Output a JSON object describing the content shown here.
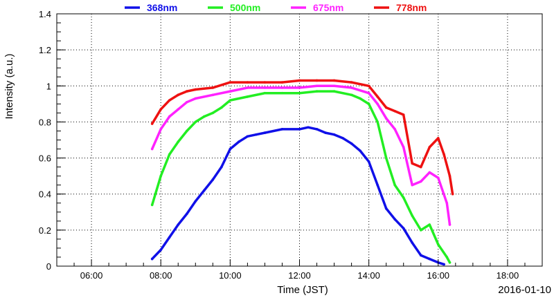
{
  "chart_data": {
    "type": "line",
    "xlabel": "Time (JST)",
    "ylabel": "Intensity (a.u.)",
    "date_label": "2016-01-10",
    "xlim": [
      "05:00",
      "19:00"
    ],
    "ylim": [
      0,
      1.4
    ],
    "x_ticks": [
      "06:00",
      "08:00",
      "10:00",
      "12:00",
      "14:00",
      "16:00",
      "18:00"
    ],
    "y_ticks": [
      "0",
      "0.2",
      "0.4",
      "0.6",
      "0.8",
      "1",
      "1.2",
      "1.4"
    ],
    "grid": true,
    "legend_position": "top",
    "series": [
      {
        "name": "368nm",
        "color": "#1010e8",
        "points": [
          [
            "07:45",
            0.04
          ],
          [
            "08:00",
            0.09
          ],
          [
            "08:15",
            0.16
          ],
          [
            "08:30",
            0.23
          ],
          [
            "08:45",
            0.29
          ],
          [
            "09:00",
            0.36
          ],
          [
            "09:15",
            0.42
          ],
          [
            "09:30",
            0.48
          ],
          [
            "09:45",
            0.55
          ],
          [
            "10:00",
            0.65
          ],
          [
            "10:15",
            0.69
          ],
          [
            "10:30",
            0.72
          ],
          [
            "10:45",
            0.73
          ],
          [
            "11:00",
            0.74
          ],
          [
            "11:30",
            0.76
          ],
          [
            "12:00",
            0.76
          ],
          [
            "12:15",
            0.77
          ],
          [
            "12:30",
            0.76
          ],
          [
            "12:45",
            0.74
          ],
          [
            "13:00",
            0.73
          ],
          [
            "13:15",
            0.71
          ],
          [
            "13:30",
            0.68
          ],
          [
            "13:45",
            0.64
          ],
          [
            "14:00",
            0.58
          ],
          [
            "14:15",
            0.45
          ],
          [
            "14:30",
            0.32
          ],
          [
            "14:45",
            0.26
          ],
          [
            "15:00",
            0.21
          ],
          [
            "15:15",
            0.13
          ],
          [
            "15:30",
            0.06
          ],
          [
            "15:45",
            0.04
          ],
          [
            "16:00",
            0.02
          ],
          [
            "16:10",
            0.01
          ]
        ]
      },
      {
        "name": "500nm",
        "color": "#22ee22",
        "points": [
          [
            "07:45",
            0.34
          ],
          [
            "08:00",
            0.5
          ],
          [
            "08:15",
            0.62
          ],
          [
            "08:30",
            0.69
          ],
          [
            "08:45",
            0.75
          ],
          [
            "09:00",
            0.8
          ],
          [
            "09:15",
            0.83
          ],
          [
            "09:30",
            0.85
          ],
          [
            "09:45",
            0.88
          ],
          [
            "10:00",
            0.92
          ],
          [
            "10:30",
            0.94
          ],
          [
            "11:00",
            0.96
          ],
          [
            "11:30",
            0.96
          ],
          [
            "12:00",
            0.96
          ],
          [
            "12:30",
            0.97
          ],
          [
            "13:00",
            0.97
          ],
          [
            "13:30",
            0.95
          ],
          [
            "13:45",
            0.93
          ],
          [
            "14:00",
            0.9
          ],
          [
            "14:15",
            0.8
          ],
          [
            "14:30",
            0.6
          ],
          [
            "14:45",
            0.45
          ],
          [
            "15:00",
            0.38
          ],
          [
            "15:15",
            0.28
          ],
          [
            "15:30",
            0.2
          ],
          [
            "15:45",
            0.23
          ],
          [
            "16:00",
            0.12
          ],
          [
            "16:15",
            0.05
          ],
          [
            "16:20",
            0.02
          ]
        ]
      },
      {
        "name": "675nm",
        "color": "#ff22ff",
        "points": [
          [
            "07:45",
            0.65
          ],
          [
            "08:00",
            0.76
          ],
          [
            "08:15",
            0.83
          ],
          [
            "08:30",
            0.87
          ],
          [
            "08:45",
            0.91
          ],
          [
            "09:00",
            0.93
          ],
          [
            "09:30",
            0.95
          ],
          [
            "10:00",
            0.97
          ],
          [
            "10:30",
            0.99
          ],
          [
            "11:00",
            0.99
          ],
          [
            "11:30",
            0.99
          ],
          [
            "12:00",
            0.99
          ],
          [
            "12:30",
            1.0
          ],
          [
            "13:00",
            1.0
          ],
          [
            "13:30",
            0.99
          ],
          [
            "14:00",
            0.96
          ],
          [
            "14:15",
            0.9
          ],
          [
            "14:30",
            0.82
          ],
          [
            "14:45",
            0.76
          ],
          [
            "15:00",
            0.66
          ],
          [
            "15:15",
            0.45
          ],
          [
            "15:30",
            0.47
          ],
          [
            "15:45",
            0.52
          ],
          [
            "16:00",
            0.49
          ],
          [
            "16:15",
            0.35
          ],
          [
            "16:20",
            0.23
          ]
        ]
      },
      {
        "name": "778nm",
        "color": "#ee1111",
        "points": [
          [
            "07:45",
            0.79
          ],
          [
            "08:00",
            0.87
          ],
          [
            "08:15",
            0.92
          ],
          [
            "08:30",
            0.95
          ],
          [
            "08:45",
            0.97
          ],
          [
            "09:00",
            0.98
          ],
          [
            "09:30",
            0.99
          ],
          [
            "10:00",
            1.02
          ],
          [
            "10:30",
            1.02
          ],
          [
            "11:00",
            1.02
          ],
          [
            "11:30",
            1.02
          ],
          [
            "12:00",
            1.03
          ],
          [
            "12:30",
            1.03
          ],
          [
            "13:00",
            1.03
          ],
          [
            "13:30",
            1.02
          ],
          [
            "14:00",
            1.0
          ],
          [
            "14:15",
            0.94
          ],
          [
            "14:30",
            0.88
          ],
          [
            "14:45",
            0.86
          ],
          [
            "15:00",
            0.84
          ],
          [
            "15:15",
            0.57
          ],
          [
            "15:30",
            0.55
          ],
          [
            "15:45",
            0.66
          ],
          [
            "16:00",
            0.71
          ],
          [
            "16:10",
            0.62
          ],
          [
            "16:20",
            0.5
          ],
          [
            "16:25",
            0.4
          ]
        ]
      }
    ]
  }
}
